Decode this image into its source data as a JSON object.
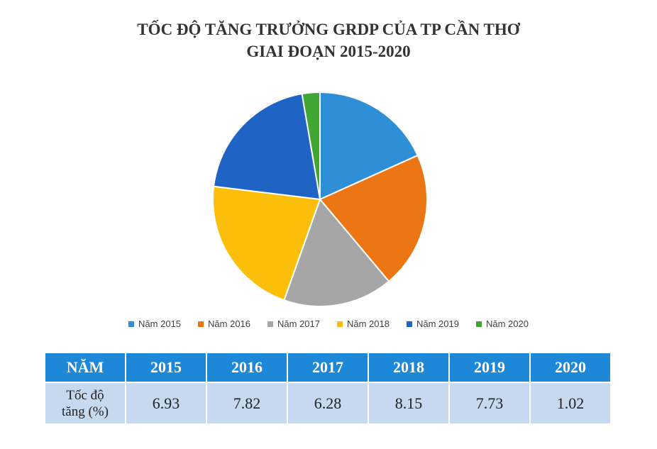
{
  "title_lines": [
    "TỐC ĐỘ TĂNG TRƯỞNG GRDP CỦA TP CẦN THƠ",
    "GIAI ĐOẠN 2015-2020"
  ],
  "chart_data": {
    "type": "pie",
    "title": "TỐC ĐỘ TĂNG TRƯỞNG GRDP CỦA TP CẦN THƠ GIAI ĐOẠN 2015-2020",
    "categories": [
      "Năm 2015",
      "Năm 2016",
      "Năm 2017",
      "Năm 2018",
      "Năm 2019",
      "Năm 2020"
    ],
    "values": [
      6.93,
      7.82,
      6.28,
      8.15,
      7.73,
      1.02
    ],
    "colors": [
      "#2e8fd6",
      "#eb7613",
      "#a6a6a6",
      "#fbbf0b",
      "#1f63c5",
      "#3fa533"
    ],
    "legend_position": "bottom"
  },
  "table": {
    "header_label": "NĂM",
    "years": [
      "2015",
      "2016",
      "2017",
      "2018",
      "2019",
      "2020"
    ],
    "row_label_line1": "Tốc độ",
    "row_label_line2": "tăng (%)",
    "values": [
      "6.93",
      "7.82",
      "6.28",
      "8.15",
      "7.73",
      "1.02"
    ]
  }
}
